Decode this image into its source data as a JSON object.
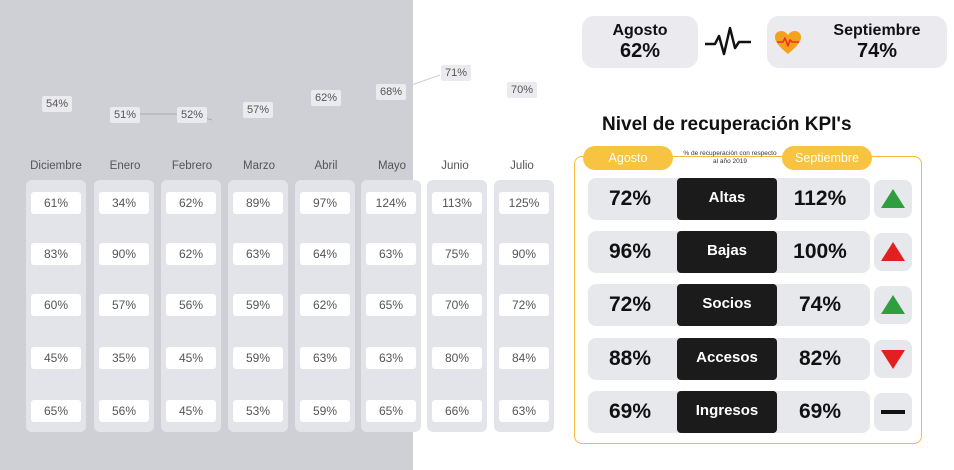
{
  "trend": {
    "points": [
      {
        "month": "Diciembre",
        "value": "54%"
      },
      {
        "month": "Enero",
        "value": "51%"
      },
      {
        "month": "Febrero",
        "value": "52%"
      },
      {
        "month": "Marzo",
        "value": "57%"
      },
      {
        "month": "Abril",
        "value": "62%"
      },
      {
        "month": "Mayo",
        "value": "68%"
      },
      {
        "month": "Junio",
        "value": "71%"
      },
      {
        "month": "Julio",
        "value": "70%"
      }
    ]
  },
  "months": [
    {
      "name": "Diciembre",
      "values": [
        "61%",
        "83%",
        "60%",
        "45%",
        "65%"
      ]
    },
    {
      "name": "Enero",
      "values": [
        "34%",
        "90%",
        "57%",
        "35%",
        "56%"
      ]
    },
    {
      "name": "Febrero",
      "values": [
        "62%",
        "62%",
        "56%",
        "45%",
        "45%"
      ]
    },
    {
      "name": "Marzo",
      "values": [
        "89%",
        "63%",
        "59%",
        "59%",
        "53%"
      ]
    },
    {
      "name": "Abril",
      "values": [
        "97%",
        "64%",
        "62%",
        "63%",
        "59%"
      ]
    },
    {
      "name": "Mayo",
      "values": [
        "124%",
        "63%",
        "65%",
        "63%",
        "65%"
      ]
    },
    {
      "name": "Junio",
      "values": [
        "113%",
        "75%",
        "70%",
        "80%",
        "66%"
      ]
    },
    {
      "name": "Julio",
      "values": [
        "125%",
        "90%",
        "72%",
        "84%",
        "63%"
      ]
    }
  ],
  "summary": {
    "agosto": {
      "label": "Agosto",
      "value": "62%"
    },
    "septiembre": {
      "label": "Septiembre",
      "value": "74%"
    }
  },
  "kpi": {
    "title": "Nivel de recuperación KPI's",
    "col_left": "Agosto",
    "col_right": "Septiembre",
    "note": "% de recuperación con respecto al año 2019",
    "rows": [
      {
        "name": "Altas",
        "agosto": "72%",
        "septiembre": "112%",
        "trend": "up-green"
      },
      {
        "name": "Bajas",
        "agosto": "96%",
        "septiembre": "100%",
        "trend": "up-red"
      },
      {
        "name": "Socios",
        "agosto": "72%",
        "septiembre": "74%",
        "trend": "up-green"
      },
      {
        "name": "Accesos",
        "agosto": "88%",
        "septiembre": "82%",
        "trend": "down-red"
      },
      {
        "name": "Ingresos",
        "agosto": "69%",
        "septiembre": "69%",
        "trend": "flat"
      }
    ]
  },
  "icons": {
    "pulse": "heartbeat-line-icon",
    "heart": "heart-pulse-icon"
  },
  "colors": {
    "accent": "#f8c340",
    "green": "#2e9e41",
    "red": "#e41f1f",
    "dark": "#1b1b1b"
  }
}
